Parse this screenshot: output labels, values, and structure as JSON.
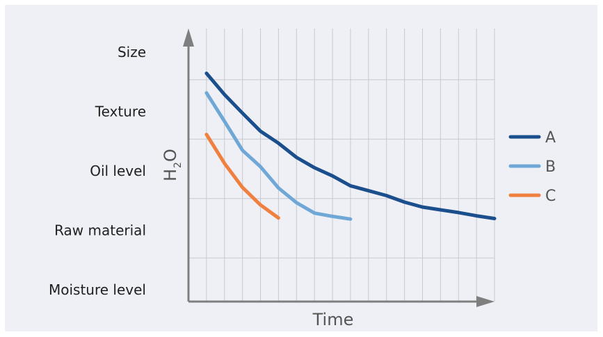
{
  "chart_data": {
    "type": "line",
    "xlabel": "Time",
    "ylabel_main": "H",
    "ylabel_sub": "2",
    "ylabel_tail": "O",
    "y_categories": [
      "Size",
      "Texture",
      "Oil level",
      "Raw material",
      "Moisture level"
    ],
    "x": [
      1,
      2,
      3,
      4,
      5,
      6,
      7,
      8,
      9,
      10,
      11,
      12,
      13,
      14,
      15,
      16,
      17
    ],
    "xlim": [
      0,
      17
    ],
    "ylim": [
      0,
      100
    ],
    "grid": true,
    "legend_position": "right",
    "series": [
      {
        "name": "A",
        "color": "#1b4e8c",
        "x": [
          1,
          2,
          3,
          4,
          5,
          6,
          7,
          8,
          9,
          10,
          11,
          12,
          13,
          14,
          15,
          16,
          17
        ],
        "values": [
          83.6,
          75.8,
          69.0,
          62.4,
          58.0,
          52.8,
          49.0,
          46.0,
          42.4,
          40.6,
          38.8,
          36.4,
          34.6,
          33.6,
          32.6,
          31.4,
          30.4
        ]
      },
      {
        "name": "B",
        "color": "#6fa8d6",
        "x": [
          1,
          2,
          3,
          4,
          5,
          6,
          7,
          8,
          9
        ],
        "values": [
          76.4,
          66.0,
          55.4,
          49.4,
          41.6,
          36.2,
          32.4,
          31.2,
          30.2
        ]
      },
      {
        "name": "C",
        "color": "#f08040",
        "x": [
          1,
          2,
          3,
          4,
          5
        ],
        "values": [
          61.2,
          50.6,
          41.8,
          35.4,
          30.6
        ]
      }
    ]
  }
}
